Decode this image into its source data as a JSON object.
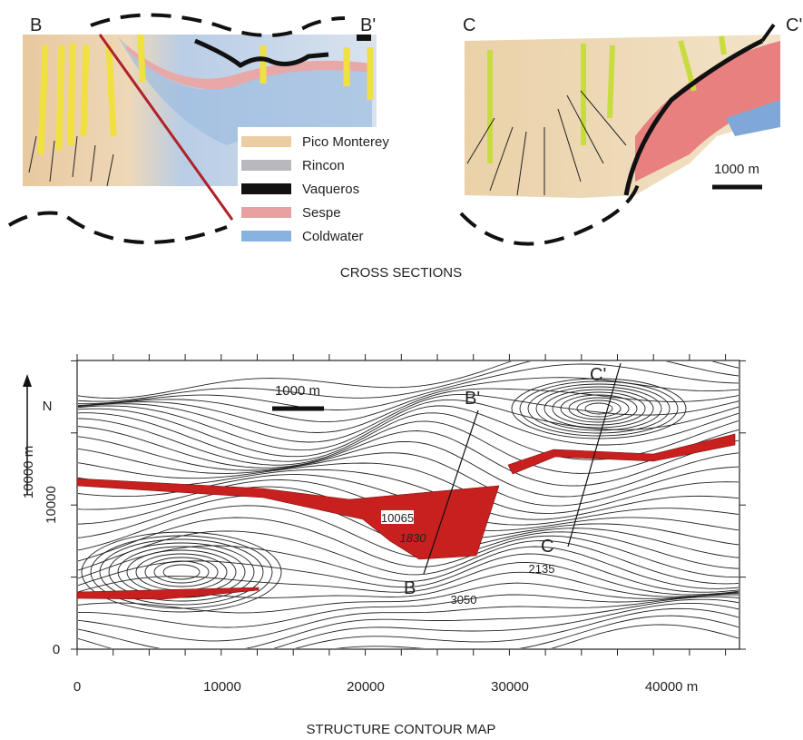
{
  "cross_sections": {
    "section_b": {
      "start_label": "B",
      "end_label": "B'"
    },
    "section_c": {
      "start_label": "C",
      "end_label": "C'",
      "scale_label": "1000 m"
    },
    "legend": [
      "Pico Monterey",
      "Rincon",
      "Vaqueros",
      "Sespe",
      "Coldwater"
    ],
    "caption": "CROSS SECTIONS"
  },
  "map": {
    "north_label": "N",
    "scale_label": "1000 m",
    "y_axis_label": "10000 m",
    "y_ticks": [
      "0",
      "10000"
    ],
    "x_ticks": [
      "0",
      "10000",
      "20000",
      "30000",
      "40000 m"
    ],
    "contour_labels": [
      "10065",
      "1830",
      "2135",
      "3050"
    ],
    "line_labels": [
      "B",
      "B'",
      "C",
      "C'"
    ],
    "caption": "STRUCTURE CONTOUR MAP"
  }
}
